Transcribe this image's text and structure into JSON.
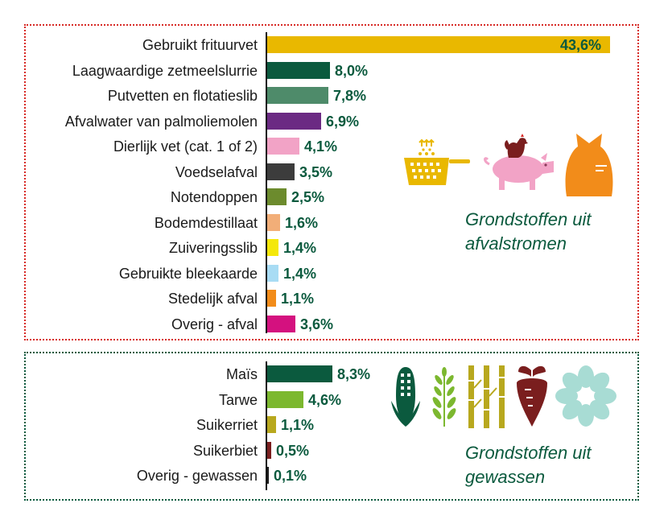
{
  "colors": {
    "waste_border": "#d72a26",
    "crops_border": "#0b5a3e",
    "value_text": "#0b5a3e"
  },
  "icons": {
    "waste": [
      "fryer-basket-icon",
      "pig-with-chicken-icon",
      "waste-bag-icon"
    ],
    "crops": [
      "corn-icon",
      "wheat-icon",
      "sugarcane-icon",
      "sugar-beet-icon",
      "flower-icon"
    ]
  },
  "chart_data": [
    {
      "type": "bar",
      "orientation": "horizontal",
      "group_label": "Grondstoffen uit afvalstromen",
      "xlim": [
        0,
        43.6
      ],
      "categories": [
        "Gebruikt frituurvet",
        "Laagwaardige zetmeelslurrie",
        "Putvetten en flotatieslib",
        "Afvalwater van palmoliemolen",
        "Dierlijk vet (cat. 1 of 2)",
        "Voedselafval",
        "Notendoppen",
        "Bodemdestillaat",
        "Zuiveringsslib",
        "Gebruikte bleekaarde",
        "Stedelijk afval",
        "Overig - afval"
      ],
      "values": [
        43.6,
        8.0,
        7.8,
        6.9,
        4.1,
        3.5,
        2.5,
        1.6,
        1.4,
        1.4,
        1.1,
        3.6
      ],
      "value_labels": [
        "43,6%",
        "8,0%",
        "7,8%",
        "6,9%",
        "4,1%",
        "3,5%",
        "2,5%",
        "1,6%",
        "1,4%",
        "1,4%",
        "1,1%",
        "3,6%"
      ],
      "colors": [
        "#e9b800",
        "#0b5a3e",
        "#4e8b6a",
        "#6b2a83",
        "#f2a3c6",
        "#3c3c3c",
        "#6c8b2d",
        "#f2ae78",
        "#f4e80a",
        "#a8dcf4",
        "#f28c1a",
        "#d4117f"
      ]
    },
    {
      "type": "bar",
      "orientation": "horizontal",
      "group_label": "Grondstoffen uit gewassen",
      "xlim": [
        0,
        43.6
      ],
      "categories": [
        "Maïs",
        "Tarwe",
        "Suikerriet",
        "Suikerbiet",
        "Overig - gewassen"
      ],
      "values": [
        8.3,
        4.6,
        1.1,
        0.5,
        0.1
      ],
      "value_labels": [
        "8,3%",
        "4,6%",
        "1,1%",
        "0,5%",
        "0,1%"
      ],
      "colors": [
        "#0b5a3e",
        "#7cb82f",
        "#b8a81e",
        "#7a1e1e",
        "#1a1a1a"
      ]
    }
  ]
}
